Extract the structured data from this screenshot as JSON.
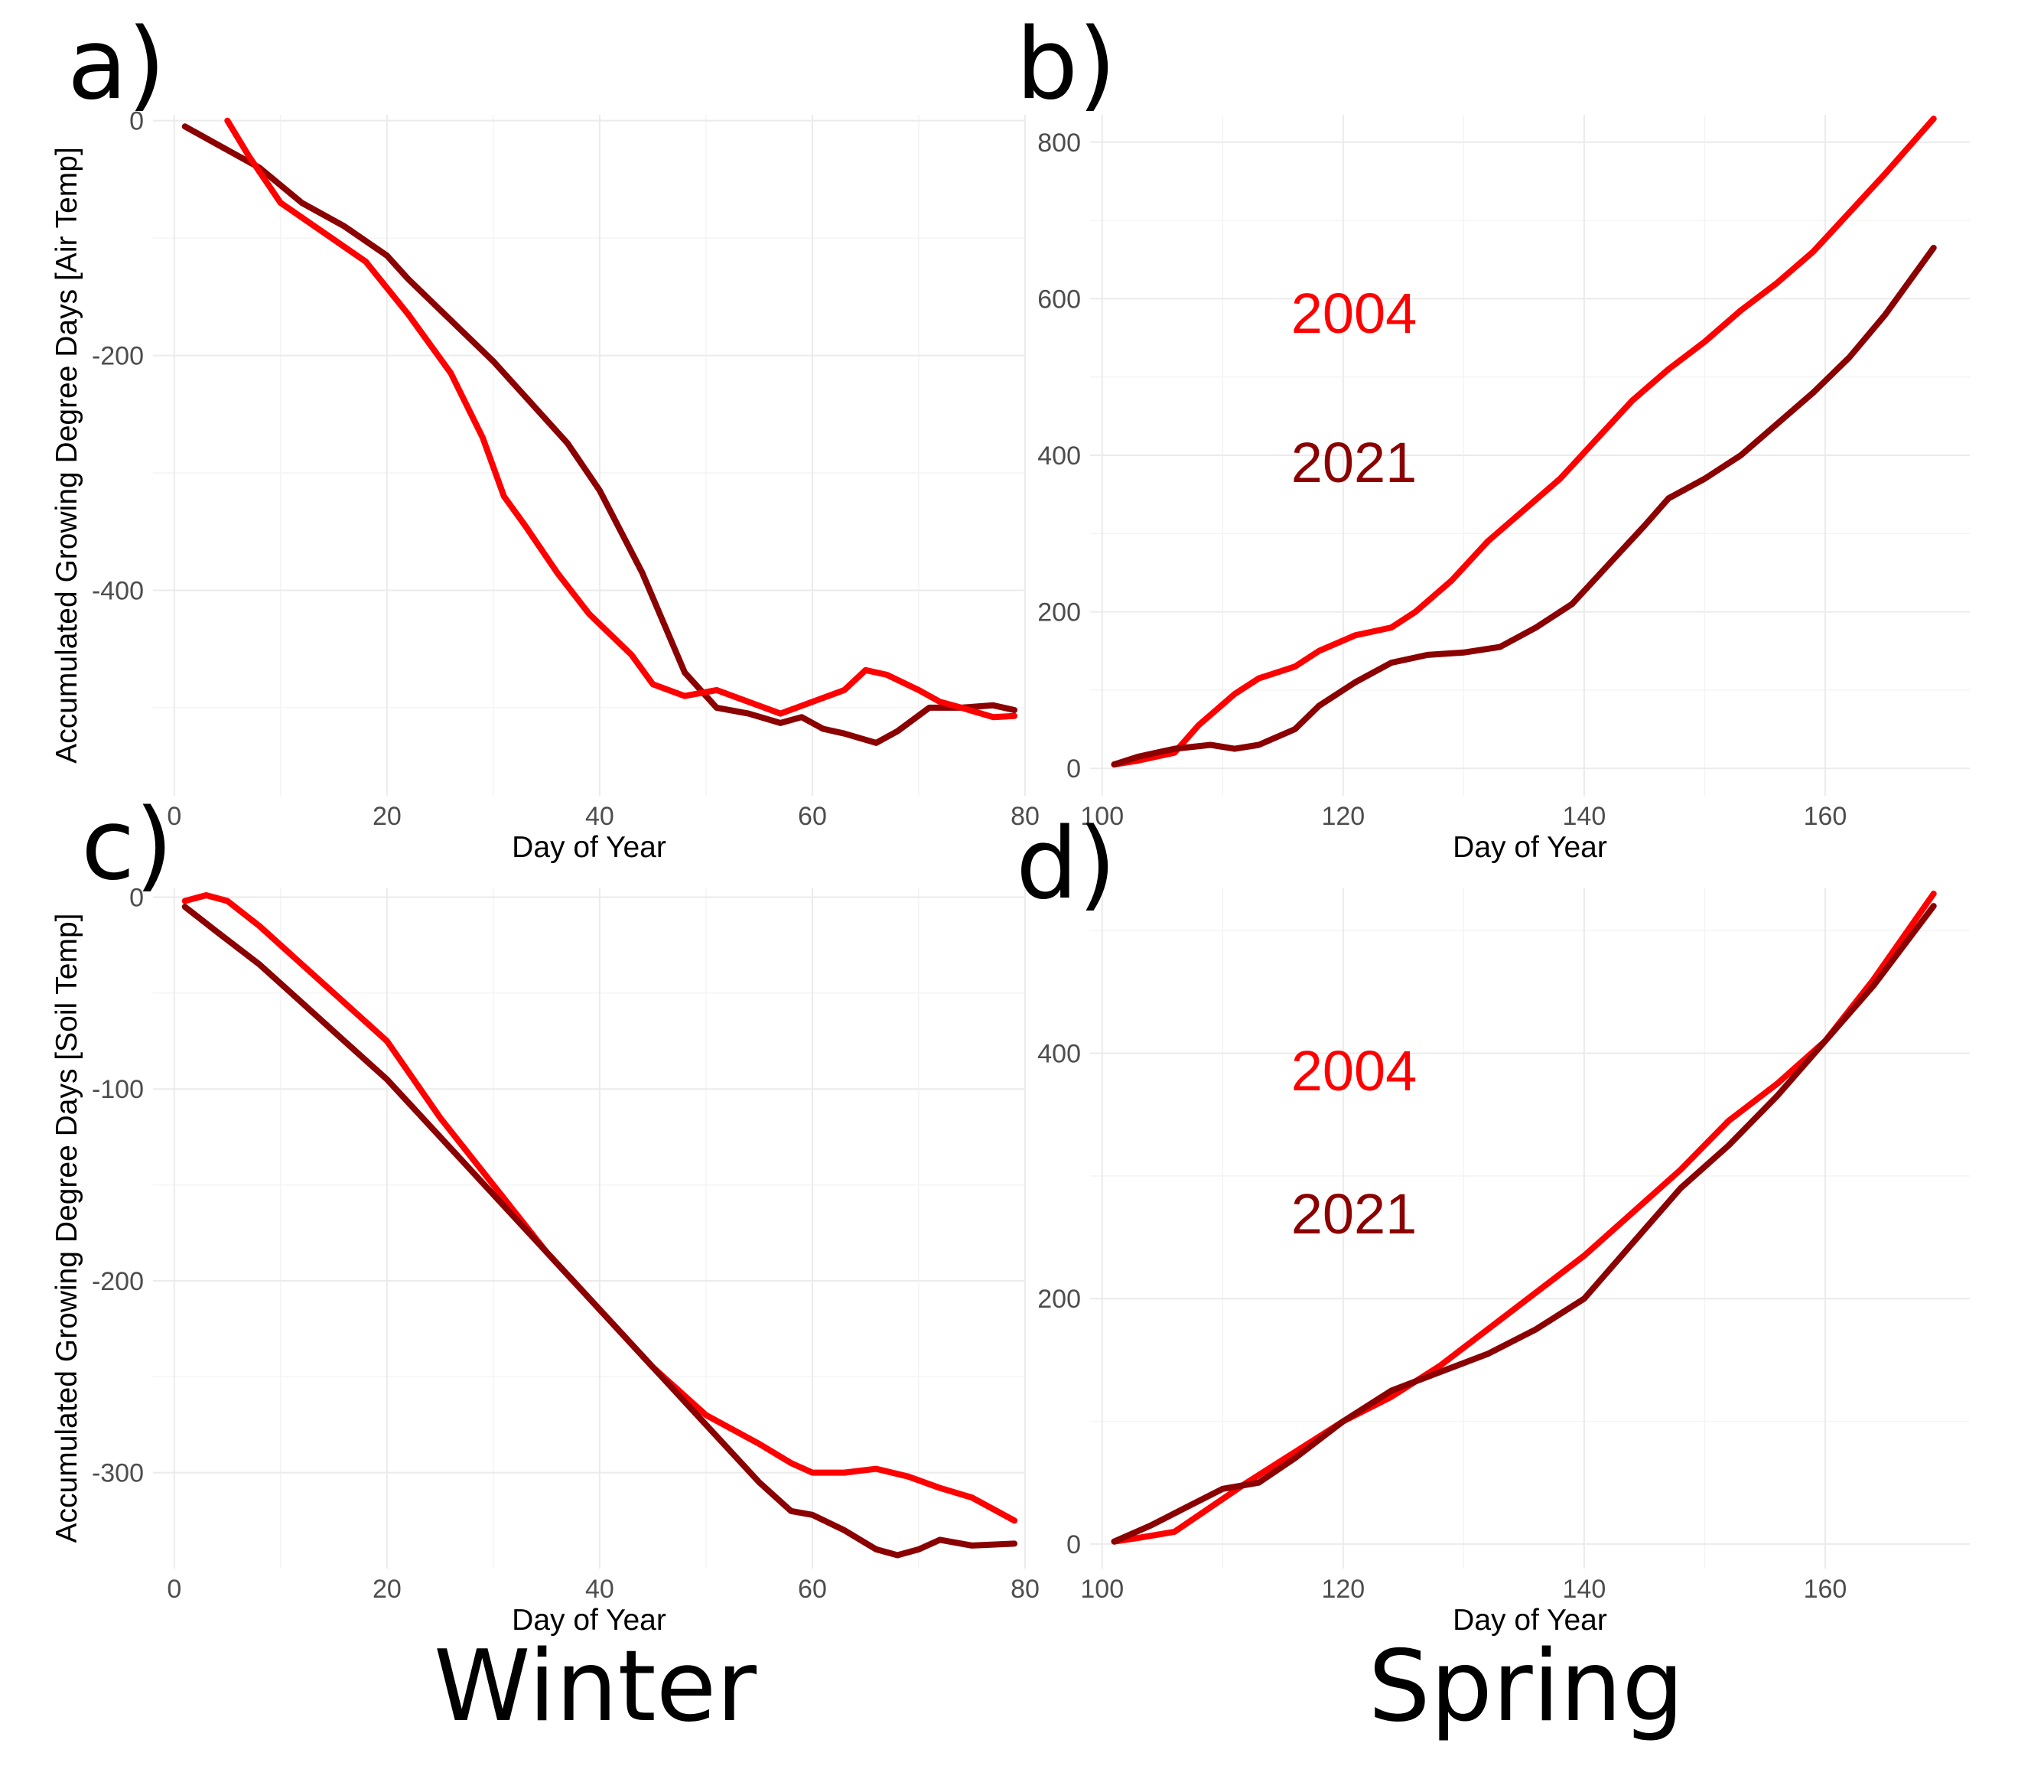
{
  "panel_letters": [
    "a)",
    "b)",
    "c)",
    "d)"
  ],
  "season_labels": {
    "winter": "Winter",
    "spring": "Spring"
  },
  "colors": {
    "2004": "#ff0000",
    "2021": "#8b0000"
  },
  "chart_data": [
    {
      "type": "line",
      "panel": "a)",
      "xlabel": "Day of Year",
      "ylabel": "Accumulated Growing Degree Days [Air Temp]",
      "xlim": [
        -2,
        80
      ],
      "ylim": [
        -575,
        5
      ],
      "xticks": [
        0,
        20,
        40,
        60,
        80
      ],
      "yticks": [
        0,
        -200,
        -400
      ],
      "grid": true,
      "series": [
        {
          "color": "#8b0000",
          "x": [
            1,
            4,
            8,
            12,
            16,
            20,
            22,
            26,
            30,
            34,
            37,
            40,
            44,
            48,
            51,
            54,
            57,
            59,
            61,
            63,
            66,
            68,
            71,
            74,
            77,
            79
          ],
          "y": [
            -5,
            -20,
            -40,
            -70,
            -90,
            -115,
            -135,
            -170,
            -205,
            -245,
            -275,
            -315,
            -385,
            -470,
            -500,
            -505,
            -513,
            -508,
            -518,
            -522,
            -530,
            -520,
            -500,
            -500,
            -498,
            -502
          ]
        },
        {
          "color": "#ff0000",
          "x": [
            5,
            7,
            10,
            14,
            18,
            22,
            26,
            29,
            31,
            33,
            36,
            39,
            43,
            45,
            48,
            51,
            54,
            57,
            60,
            63,
            65,
            67,
            70,
            72,
            74,
            77,
            79
          ],
          "y": [
            0,
            -30,
            -70,
            -95,
            -120,
            -165,
            -215,
            -270,
            -320,
            -345,
            -385,
            -420,
            -455,
            -480,
            -490,
            -485,
            -495,
            -505,
            -495,
            -485,
            -468,
            -472,
            -485,
            -495,
            -500,
            -508,
            -507
          ]
        }
      ]
    },
    {
      "type": "line",
      "panel": "b)",
      "xlabel": "Day of Year",
      "ylabel": "",
      "xlim": [
        99,
        172
      ],
      "ylim": [
        -35,
        835
      ],
      "xticks": [
        100,
        120,
        140,
        160
      ],
      "yticks": [
        0,
        200,
        400,
        600,
        800
      ],
      "grid": true,
      "annotations": [
        {
          "text": "2004",
          "color": "#ff0000"
        },
        {
          "text": "2021",
          "color": "#8b0000"
        }
      ],
      "series": [
        {
          "color": "#ff0000",
          "x": [
            101,
            103,
            106,
            108,
            111,
            113,
            116,
            118,
            121,
            124,
            126,
            129,
            132,
            135,
            138,
            141,
            144,
            147,
            150,
            153,
            156,
            159,
            162,
            165,
            169
          ],
          "y": [
            5,
            10,
            20,
            55,
            95,
            115,
            130,
            150,
            170,
            180,
            200,
            240,
            290,
            330,
            370,
            420,
            470,
            510,
            545,
            585,
            620,
            660,
            710,
            760,
            830
          ]
        },
        {
          "color": "#8b0000",
          "x": [
            101,
            103,
            106,
            109,
            111,
            113,
            116,
            118,
            121,
            124,
            127,
            130,
            133,
            136,
            139,
            142,
            145,
            147,
            150,
            153,
            156,
            159,
            162,
            165,
            169
          ],
          "y": [
            5,
            15,
            25,
            30,
            25,
            30,
            50,
            80,
            110,
            135,
            145,
            148,
            155,
            180,
            210,
            260,
            310,
            345,
            370,
            400,
            440,
            480,
            525,
            580,
            665
          ]
        }
      ]
    },
    {
      "type": "line",
      "panel": "c)",
      "xlabel": "Day of Year",
      "ylabel": "Accumulated Growing Degree Days [Soil Temp]",
      "xlim": [
        -2,
        80
      ],
      "ylim": [
        -350,
        5
      ],
      "xticks": [
        0,
        20,
        40,
        60,
        80
      ],
      "yticks": [
        0,
        -100,
        -200,
        -300
      ],
      "grid": true,
      "series": [
        {
          "color": "#ff0000",
          "x": [
            1,
            3,
            5,
            8,
            12,
            16,
            20,
            25,
            30,
            35,
            40,
            45,
            50,
            55,
            58,
            60,
            63,
            66,
            69,
            72,
            75,
            79
          ],
          "y": [
            -2,
            1,
            -2,
            -15,
            -35,
            -55,
            -75,
            -115,
            -150,
            -185,
            -215,
            -245,
            -270,
            -285,
            -295,
            -300,
            -300,
            -298,
            -302,
            -308,
            -313,
            -325
          ]
        },
        {
          "color": "#8b0000",
          "x": [
            1,
            4,
            8,
            12,
            16,
            20,
            25,
            30,
            35,
            40,
            45,
            50,
            55,
            58,
            60,
            63,
            66,
            68,
            70,
            72,
            75,
            79
          ],
          "y": [
            -5,
            -18,
            -35,
            -55,
            -75,
            -95,
            -125,
            -155,
            -185,
            -215,
            -245,
            -275,
            -305,
            -320,
            -322,
            -330,
            -340,
            -343,
            -340,
            -335,
            -338,
            -337
          ]
        }
      ]
    },
    {
      "type": "line",
      "panel": "d)",
      "xlabel": "Day of Year",
      "ylabel": "",
      "xlim": [
        99,
        172
      ],
      "ylim": [
        -20,
        535
      ],
      "xticks": [
        100,
        120,
        140,
        160
      ],
      "yticks": [
        0,
        200,
        400
      ],
      "grid": true,
      "annotations": [
        {
          "text": "2004",
          "color": "#ff0000"
        },
        {
          "text": "2021",
          "color": "#8b0000"
        }
      ],
      "series": [
        {
          "color": "#ff0000",
          "x": [
            101,
            103,
            106,
            109,
            112,
            116,
            120,
            124,
            128,
            132,
            136,
            140,
            144,
            148,
            152,
            156,
            160,
            164,
            169
          ],
          "y": [
            2,
            5,
            10,
            30,
            50,
            75,
            100,
            120,
            145,
            175,
            205,
            235,
            270,
            305,
            345,
            375,
            410,
            460,
            530
          ]
        },
        {
          "color": "#8b0000",
          "x": [
            101,
            104,
            107,
            110,
            113,
            116,
            120,
            124,
            128,
            132,
            136,
            140,
            144,
            148,
            152,
            156,
            160,
            164,
            169
          ],
          "y": [
            2,
            15,
            30,
            45,
            50,
            70,
            100,
            125,
            140,
            155,
            175,
            200,
            245,
            290,
            325,
            365,
            410,
            455,
            520
          ]
        }
      ]
    }
  ]
}
